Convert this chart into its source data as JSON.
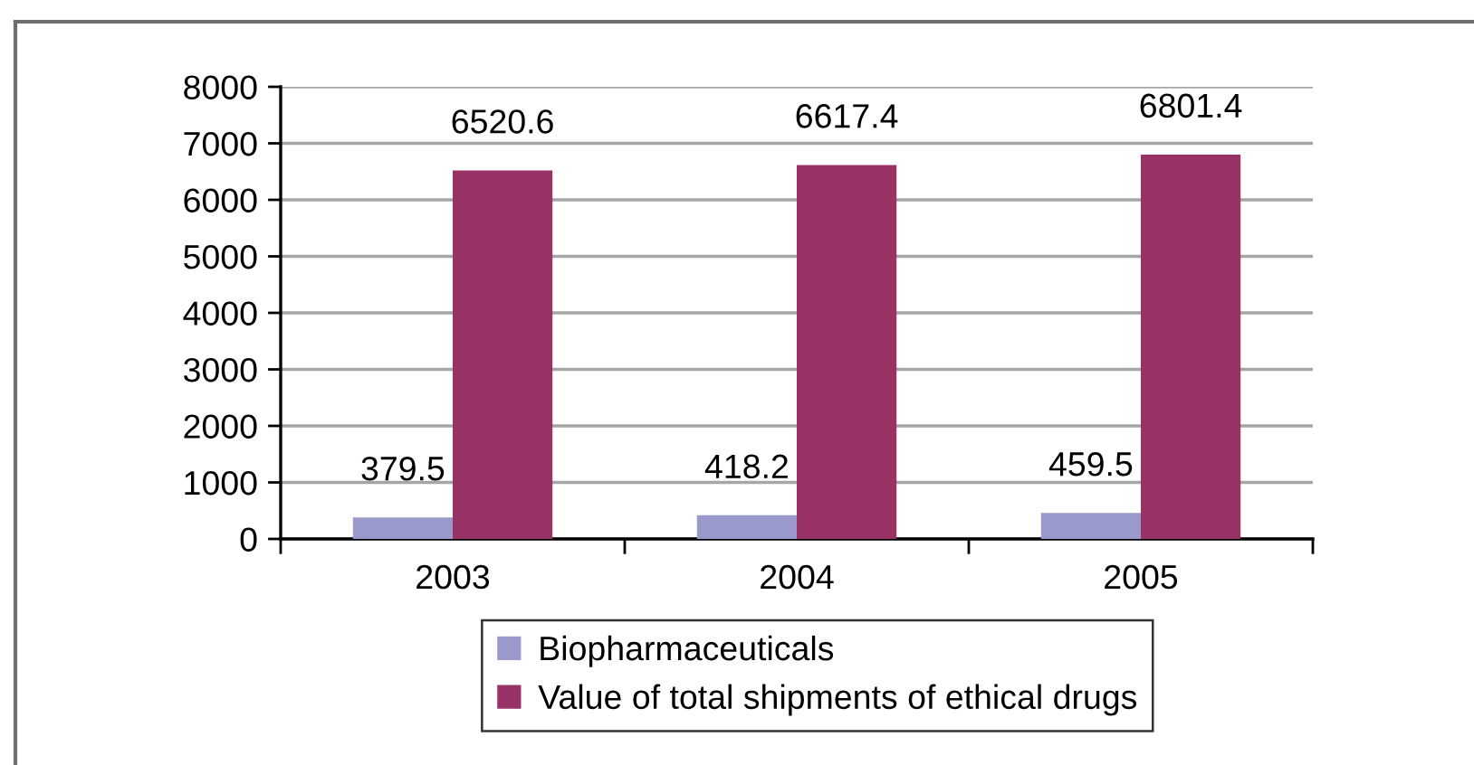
{
  "chart_data": {
    "type": "bar",
    "categories": [
      "2003",
      "2004",
      "2005"
    ],
    "series": [
      {
        "name": "Biopharmaceuticals",
        "color": "#9999cc",
        "values": [
          379.5,
          418.2,
          459.5
        ]
      },
      {
        "name": "Value of total shipments of ethical drugs",
        "color": "#993366",
        "values": [
          6520.6,
          6617.4,
          6801.4
        ]
      }
    ],
    "ylim": [
      0,
      8000
    ],
    "yticks": [
      0,
      1000,
      2000,
      3000,
      4000,
      5000,
      6000,
      7000,
      8000
    ],
    "grid": "y",
    "legend": "bottom",
    "data_labels": true
  }
}
